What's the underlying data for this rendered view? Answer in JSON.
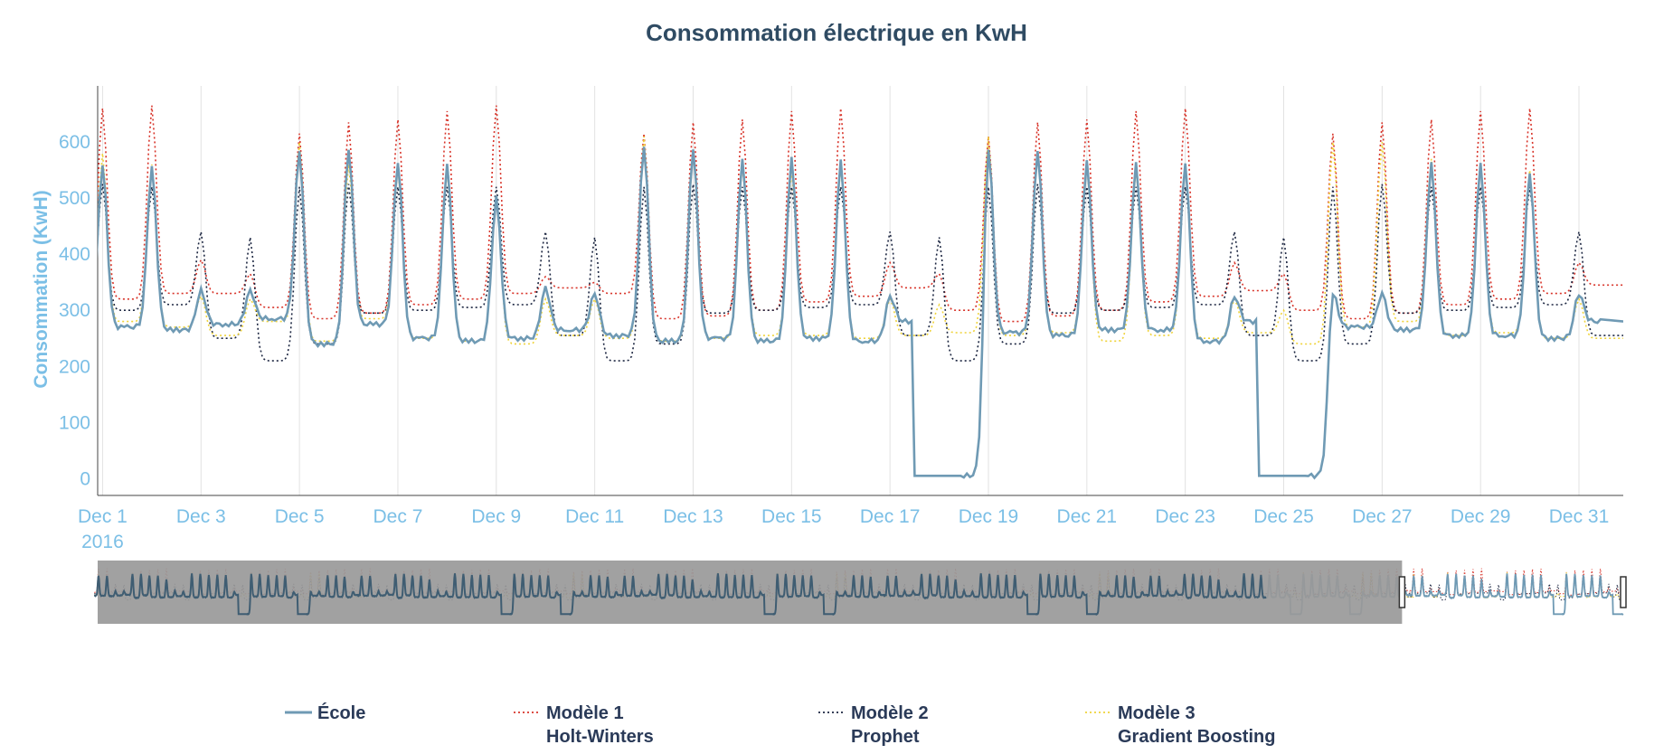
{
  "chart_data": {
    "type": "line",
    "title": "Consommation électrique en KwH",
    "xlabel": "",
    "ylabel": "Consommation (KwH)",
    "ylim": [
      -30,
      700
    ],
    "yticks": [
      0,
      100,
      200,
      300,
      400,
      500,
      600
    ],
    "xlim": [
      0.9,
      31.9
    ],
    "xticks": [
      {
        "day": 1,
        "label": "Dec 1",
        "sub": "2016"
      },
      {
        "day": 3,
        "label": "Dec 3",
        "sub": ""
      },
      {
        "day": 5,
        "label": "Dec 5",
        "sub": ""
      },
      {
        "day": 7,
        "label": "Dec 7",
        "sub": ""
      },
      {
        "day": 9,
        "label": "Dec 9",
        "sub": ""
      },
      {
        "day": 11,
        "label": "Dec 11",
        "sub": ""
      },
      {
        "day": 13,
        "label": "Dec 13",
        "sub": ""
      },
      {
        "day": 15,
        "label": "Dec 15",
        "sub": ""
      },
      {
        "day": 17,
        "label": "Dec 17",
        "sub": ""
      },
      {
        "day": 19,
        "label": "Dec 19",
        "sub": ""
      },
      {
        "day": 21,
        "label": "Dec 21",
        "sub": ""
      },
      {
        "day": 23,
        "label": "Dec 23",
        "sub": ""
      },
      {
        "day": 25,
        "label": "Dec 25",
        "sub": ""
      },
      {
        "day": 27,
        "label": "Dec 27",
        "sub": ""
      },
      {
        "day": 29,
        "label": "Dec 29",
        "sub": ""
      },
      {
        "day": 31,
        "label": "Dec 31",
        "sub": ""
      }
    ],
    "grid": true,
    "legend_position": "bottom",
    "rangeslider": true,
    "x_unit": "day of December 2016 (peak of daily cycle)",
    "series": [
      {
        "name": "École",
        "style": "solid",
        "color": "#6f9ab4",
        "peaks": [
          560,
          555,
          335,
          335,
          585,
          590,
          565,
          560,
          500,
          340,
          330,
          595,
          590,
          570,
          570,
          565,
          325,
          5,
          590,
          585,
          565,
          560,
          560,
          325,
          5,
          330,
          330,
          560,
          560,
          545,
          330
        ],
        "troughs": [
          270,
          265,
          275,
          285,
          240,
          275,
          250,
          245,
          250,
          265,
          255,
          245,
          250,
          245,
          250,
          245,
          280,
          5,
          260,
          255,
          265,
          265,
          245,
          280,
          5,
          270,
          265,
          255,
          255,
          250,
          280
        ]
      },
      {
        "name": "Modèle 1 Holt-Winters",
        "style": "dotted",
        "color": "#d8342a",
        "peaks": [
          660,
          665,
          390,
          365,
          615,
          635,
          640,
          655,
          665,
          360,
          350,
          615,
          635,
          640,
          655,
          660,
          385,
          365,
          610,
          635,
          640,
          655,
          660,
          385,
          365,
          615,
          635,
          640,
          655,
          660,
          385
        ],
        "troughs": [
          320,
          330,
          330,
          305,
          285,
          295,
          310,
          320,
          330,
          340,
          330,
          285,
          290,
          300,
          315,
          325,
          340,
          300,
          280,
          290,
          300,
          315,
          325,
          335,
          300,
          285,
          295,
          310,
          320,
          330,
          345
        ]
      },
      {
        "name": "Modèle 2 Prophet",
        "style": "dotted",
        "color": "#1b2540",
        "peaks": [
          525,
          520,
          440,
          430,
          520,
          525,
          520,
          520,
          520,
          440,
          430,
          520,
          525,
          520,
          520,
          520,
          440,
          430,
          520,
          525,
          520,
          520,
          520,
          440,
          430,
          520,
          525,
          520,
          520,
          520,
          440
        ],
        "troughs": [
          300,
          310,
          250,
          210,
          240,
          295,
          300,
          305,
          310,
          255,
          210,
          240,
          295,
          300,
          305,
          310,
          255,
          210,
          240,
          295,
          300,
          305,
          310,
          255,
          210,
          240,
          295,
          300,
          305,
          310,
          255
        ]
      },
      {
        "name": "Modèle 3 Gradient Boosting",
        "style": "dotted",
        "color": "#efd33a",
        "peaks": [
          580,
          560,
          325,
          320,
          600,
          560,
          555,
          550,
          500,
          320,
          320,
          610,
          580,
          560,
          550,
          555,
          320,
          310,
          610,
          580,
          560,
          550,
          560,
          320,
          300,
          600,
          600,
          570,
          560,
          550,
          320
        ],
        "troughs": [
          280,
          270,
          255,
          280,
          245,
          285,
          250,
          245,
          240,
          255,
          250,
          245,
          250,
          255,
          255,
          250,
          255,
          260,
          255,
          260,
          245,
          255,
          250,
          260,
          240,
          270,
          280,
          255,
          260,
          250,
          250
        ]
      }
    ]
  },
  "legend": {
    "items": [
      {
        "line1": "École",
        "line2": ""
      },
      {
        "line1": "Modèle 1",
        "line2": "Holt-Winters"
      },
      {
        "line1": "Modèle 2",
        "line2": "Prophet"
      },
      {
        "line1": "Modèle 3",
        "line2": "Gradient Boosting"
      }
    ]
  },
  "colors": {
    "title": "#2f4b63",
    "axis_text": "#7bbfe6",
    "legend_text": "#2a3a58",
    "grid": "#e2e2e2",
    "rangeslider_shade": "#999999"
  },
  "rangeslider": {
    "selected_start_fraction": 0.855,
    "selected_end_fraction": 1.0
  }
}
